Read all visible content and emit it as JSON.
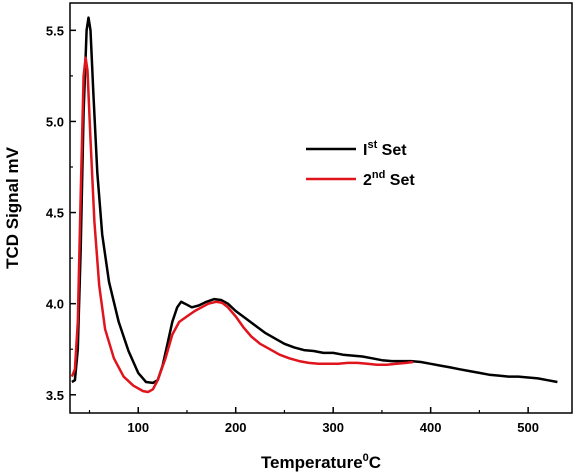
{
  "chart_data": {
    "type": "line",
    "xlabel": "Temperature",
    "xlabel_superscript": "0",
    "xlabel_unit": "C",
    "ylabel": "TCD Signal mV",
    "xlim": [
      30,
      545
    ],
    "ylim": [
      3.4,
      5.65
    ],
    "x_ticks": [
      100,
      200,
      300,
      400,
      500
    ],
    "y_ticks": [
      3.5,
      4.0,
      4.5,
      5.0,
      5.5
    ],
    "x_tick_labels": [
      "100",
      "200",
      "300",
      "400",
      "500"
    ],
    "y_tick_labels": [
      "3.5",
      "4.0",
      "4.5",
      "5.0",
      "5.5"
    ],
    "grid": false,
    "legend_position": "upper-right-center",
    "series": [
      {
        "name_main": "I",
        "name_sup": "st",
        "name_tail": " Set",
        "color": "#000000",
        "points": [
          [
            32,
            3.57
          ],
          [
            35,
            3.58
          ],
          [
            38,
            3.75
          ],
          [
            41,
            4.3
          ],
          [
            44,
            5.05
          ],
          [
            47,
            5.5
          ],
          [
            49,
            5.57
          ],
          [
            51,
            5.5
          ],
          [
            54,
            5.15
          ],
          [
            58,
            4.72
          ],
          [
            63,
            4.38
          ],
          [
            70,
            4.12
          ],
          [
            80,
            3.9
          ],
          [
            90,
            3.74
          ],
          [
            100,
            3.62
          ],
          [
            108,
            3.57
          ],
          [
            115,
            3.565
          ],
          [
            120,
            3.58
          ],
          [
            125,
            3.66
          ],
          [
            130,
            3.78
          ],
          [
            135,
            3.9
          ],
          [
            140,
            3.98
          ],
          [
            144,
            4.01
          ],
          [
            148,
            4.0
          ],
          [
            155,
            3.98
          ],
          [
            162,
            3.99
          ],
          [
            170,
            4.01
          ],
          [
            178,
            4.025
          ],
          [
            185,
            4.02
          ],
          [
            192,
            4.0
          ],
          [
            200,
            3.96
          ],
          [
            210,
            3.92
          ],
          [
            220,
            3.88
          ],
          [
            230,
            3.84
          ],
          [
            240,
            3.81
          ],
          [
            250,
            3.78
          ],
          [
            260,
            3.76
          ],
          [
            270,
            3.745
          ],
          [
            280,
            3.74
          ],
          [
            290,
            3.73
          ],
          [
            300,
            3.73
          ],
          [
            310,
            3.72
          ],
          [
            320,
            3.715
          ],
          [
            330,
            3.71
          ],
          [
            340,
            3.7
          ],
          [
            350,
            3.69
          ],
          [
            360,
            3.685
          ],
          [
            370,
            3.685
          ],
          [
            380,
            3.685
          ],
          [
            390,
            3.68
          ],
          [
            400,
            3.67
          ],
          [
            410,
            3.66
          ],
          [
            420,
            3.65
          ],
          [
            430,
            3.64
          ],
          [
            440,
            3.63
          ],
          [
            450,
            3.62
          ],
          [
            460,
            3.61
          ],
          [
            470,
            3.605
          ],
          [
            480,
            3.6
          ],
          [
            490,
            3.6
          ],
          [
            500,
            3.595
          ],
          [
            510,
            3.59
          ],
          [
            520,
            3.58
          ],
          [
            530,
            3.57
          ]
        ]
      },
      {
        "name_main": "2",
        "name_sup": "nd",
        "name_tail": " Set",
        "color": "#e0141c",
        "points": [
          [
            32,
            3.6
          ],
          [
            35,
            3.64
          ],
          [
            38,
            3.9
          ],
          [
            41,
            4.6
          ],
          [
            44,
            5.25
          ],
          [
            46,
            5.35
          ],
          [
            48,
            5.28
          ],
          [
            51,
            4.9
          ],
          [
            55,
            4.45
          ],
          [
            60,
            4.1
          ],
          [
            66,
            3.86
          ],
          [
            75,
            3.7
          ],
          [
            85,
            3.6
          ],
          [
            95,
            3.55
          ],
          [
            105,
            3.52
          ],
          [
            110,
            3.515
          ],
          [
            115,
            3.53
          ],
          [
            120,
            3.58
          ],
          [
            128,
            3.7
          ],
          [
            135,
            3.83
          ],
          [
            142,
            3.9
          ],
          [
            150,
            3.93
          ],
          [
            158,
            3.96
          ],
          [
            165,
            3.98
          ],
          [
            172,
            4.0
          ],
          [
            180,
            4.01
          ],
          [
            186,
            4.005
          ],
          [
            192,
            3.98
          ],
          [
            200,
            3.93
          ],
          [
            208,
            3.87
          ],
          [
            216,
            3.82
          ],
          [
            225,
            3.78
          ],
          [
            235,
            3.75
          ],
          [
            245,
            3.72
          ],
          [
            255,
            3.7
          ],
          [
            265,
            3.685
          ],
          [
            275,
            3.675
          ],
          [
            285,
            3.67
          ],
          [
            295,
            3.67
          ],
          [
            305,
            3.67
          ],
          [
            315,
            3.675
          ],
          [
            325,
            3.675
          ],
          [
            335,
            3.67
          ],
          [
            345,
            3.665
          ],
          [
            355,
            3.665
          ],
          [
            365,
            3.67
          ],
          [
            375,
            3.675
          ],
          [
            382,
            3.68
          ]
        ]
      }
    ]
  }
}
